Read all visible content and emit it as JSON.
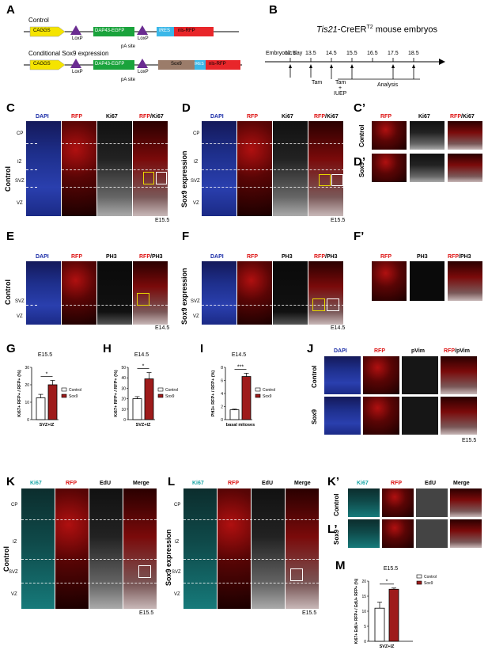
{
  "panels": {
    "A": "A",
    "B": "B",
    "C": "C",
    "Cp": "C’",
    "D": "D",
    "Dp": "D’",
    "E": "E",
    "F": "F",
    "Fp": "F’",
    "G": "G",
    "H": "H",
    "I": "I",
    "J": "J",
    "K": "K",
    "Kp": "K’",
    "L": "L",
    "Lp": "L’",
    "M": "M"
  },
  "constructs": {
    "control_title": "Control",
    "sox9_title": "Conditional Sox9 expression",
    "caggs": "CAGGS",
    "loxp": "LoxP",
    "dap": "DAP43-EGFP",
    "ires": "IRES",
    "nls": "nls-RFP",
    "pa": "pA site",
    "sox9": "Sox9"
  },
  "timeline": {
    "title_prefix": "Tis21",
    "title_suffix": "-CreER",
    "title_sup": "T2",
    "title_rest": " mouse embryos",
    "axis_label": "Embryonic day",
    "ticks": [
      "12.5",
      "13.5",
      "14.5",
      "15.5",
      "16.5",
      "17.5",
      "18.5"
    ],
    "tam": "Tam",
    "tam2": "Tam",
    "plus": "+",
    "iuep": "IUEP",
    "analysis": "Analysis"
  },
  "channels": {
    "dapi": "DAPI",
    "rfp": "RFP",
    "ki67": "Ki67",
    "rfp_ki67_a": "RFP",
    "rfp_ki67_b": "/Ki67",
    "ph3": "PH3",
    "rfp_ph3_a": "RFP",
    "rfp_ph3_b": "/PH3",
    "pvim": "pVim",
    "rfp_pvim_a": "RFP",
    "rfp_pvim_b": "/pVim",
    "edu": "EdU",
    "merge": "Merge"
  },
  "zones": {
    "cp": "CP",
    "iz": "IZ",
    "svz": "SVZ",
    "vz": "VZ"
  },
  "rows": {
    "control": "Control",
    "sox9_expression": "Sox9 expression",
    "sox9": "Sox9"
  },
  "stages": {
    "e155": "E15.5",
    "e145": "E14.5"
  },
  "charts": {
    "legend_control": "Control",
    "legend_sox9": "Sox9",
    "sig1": "*",
    "sig3": "***"
  },
  "chart_data": [
    {
      "type": "bar",
      "id": "G",
      "title": "E15.5",
      "ylabel": "Ki67+ RFP+ / RFP+ (%)",
      "xlabel": "SVZ+IZ",
      "ylim": [
        0,
        30
      ],
      "yticks": [
        0,
        10,
        20,
        30
      ],
      "series": [
        {
          "name": "Control",
          "values": [
            12.5
          ]
        },
        {
          "name": "Sox9",
          "values": [
            20
          ]
        }
      ],
      "err": [
        2,
        2.5
      ],
      "significance": "*"
    },
    {
      "type": "bar",
      "id": "H",
      "title": "E14.5",
      "ylabel": "Ki67+ RFP+ / RFP+ (%)",
      "xlabel": "SVZ+IZ",
      "ylim": [
        0,
        50
      ],
      "yticks": [
        0,
        10,
        20,
        30,
        40,
        50
      ],
      "series": [
        {
          "name": "Control",
          "values": [
            20
          ]
        },
        {
          "name": "Sox9",
          "values": [
            39
          ]
        }
      ],
      "err": [
        2,
        6
      ],
      "significance": "*"
    },
    {
      "type": "bar",
      "id": "I",
      "title": "E14.5",
      "ylabel": "PH3+ RFP+ / RFP+ (%)",
      "xlabel": "basal mitoses",
      "ylim": [
        0,
        8
      ],
      "yticks": [
        0,
        2,
        4,
        6,
        8
      ],
      "series": [
        {
          "name": "Control",
          "values": [
            1.5
          ]
        },
        {
          "name": "Sox9",
          "values": [
            6.6
          ]
        }
      ],
      "err": [
        0.1,
        0.5
      ],
      "significance": "***"
    },
    {
      "type": "bar",
      "id": "M",
      "title": "E15.5",
      "ylabel": "Ki67+ EdU+ RFP+ / EdU+ RFP+ (%)",
      "xlabel": "SVZ+IZ",
      "ylim": [
        0,
        20
      ],
      "yticks": [
        0,
        5,
        10,
        15,
        20
      ],
      "series": [
        {
          "name": "Control",
          "values": [
            11
          ]
        },
        {
          "name": "Sox9",
          "values": [
            17.3
          ]
        }
      ],
      "err": [
        2,
        0.4
      ],
      "significance": "*"
    }
  ],
  "colors": {
    "control_bar": "#ffffff",
    "sox9_bar": "#9e1b1b",
    "caggs": "#f5e400",
    "egfp": "#1aa33c",
    "ires": "#3ab7e8",
    "rfp": "#e8262a",
    "loxp": "#6a2c91",
    "sox9_box": "#9b7c6a"
  }
}
